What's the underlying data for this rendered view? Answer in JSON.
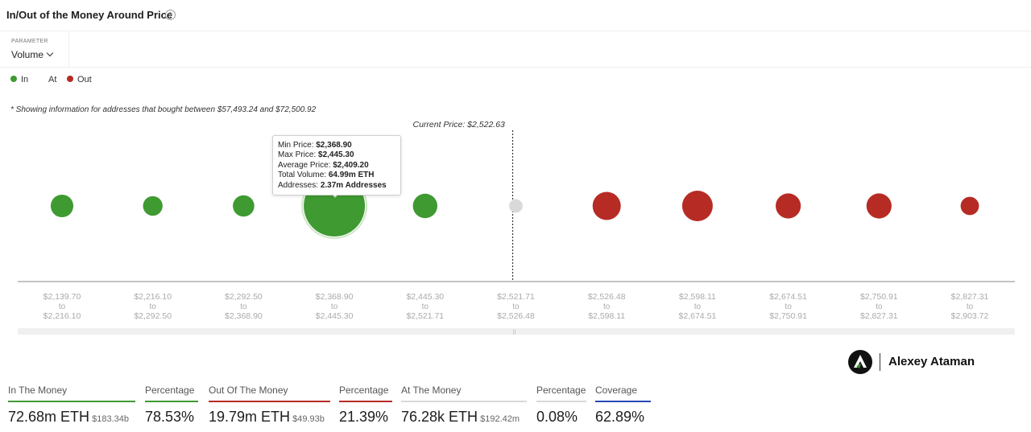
{
  "header": {
    "title": "In/Out of the Money Around Price"
  },
  "parameter": {
    "label": "PARAMETER",
    "value": "Volume"
  },
  "legend": [
    {
      "label": "In",
      "color": "#3f9a32"
    },
    {
      "label": "At",
      "color": "#d9d9d9"
    },
    {
      "label": "Out",
      "color": "#b72b25"
    }
  ],
  "note": "* Showing information for addresses that bought between $57,493.24 and $72,500.92",
  "chart_data": {
    "type": "scatter",
    "current_price_label": "Current Price: $2,522.63",
    "bubbles": [
      {
        "from": "$2,139.70",
        "to": "$2,216.10",
        "status": "in",
        "size": 0.37
      },
      {
        "from": "$2,216.10",
        "to": "$2,292.50",
        "status": "in",
        "size": 0.32
      },
      {
        "from": "$2,292.50",
        "to": "$2,368.90",
        "status": "in",
        "size": 0.35
      },
      {
        "from": "$2,368.90",
        "to": "$2,445.30",
        "status": "in",
        "size": 1.0
      },
      {
        "from": "$2,445.30",
        "to": "$2,521.71",
        "status": "in",
        "size": 0.4
      },
      {
        "from": "$2,521.71",
        "to": "$2,526.48",
        "status": "at",
        "size": 0.22
      },
      {
        "from": "$2,526.48",
        "to": "$2,598.11",
        "status": "out",
        "size": 0.46
      },
      {
        "from": "$2,598.11",
        "to": "$2,674.51",
        "status": "out",
        "size": 0.5
      },
      {
        "from": "$2,674.51",
        "to": "$2,750.91",
        "status": "out",
        "size": 0.41
      },
      {
        "from": "$2,750.91",
        "to": "$2,827.31",
        "status": "out",
        "size": 0.41
      },
      {
        "from": "$2,827.31",
        "to": "$2,903.72",
        "status": "out",
        "size": 0.3
      }
    ],
    "tick_joiner": "to"
  },
  "tooltip": {
    "min_label": "Min Price: ",
    "min_value": "$2,368.90",
    "max_label": "Max Price: ",
    "max_value": "$2,445.30",
    "avg_label": "Average Price: ",
    "avg_value": "$2,409.20",
    "vol_label": "Total Volume: ",
    "vol_value": "64.99m ETH",
    "addr_label": "Addresses: ",
    "addr_value": "2.37m Addresses"
  },
  "brand": {
    "name": "Alexey Ataman"
  },
  "stats": [
    {
      "label": "In The Money",
      "value": "72.68m ETH",
      "sub": "$183.34b",
      "color": "#3f9a32"
    },
    {
      "label": "Percentage",
      "value": "78.53%",
      "sub": "",
      "color": "#3f9a32"
    },
    {
      "label": "Out Of The Money",
      "value": "19.79m ETH",
      "sub": "$49.93b",
      "color": "#b72b25"
    },
    {
      "label": "Percentage",
      "value": "21.39%",
      "sub": "",
      "color": "#b72b25"
    },
    {
      "label": "At The Money",
      "value": "76.28k ETH",
      "sub": "$192.42m",
      "color": "#d9d9d9"
    },
    {
      "label": "Percentage",
      "value": "0.08%",
      "sub": "",
      "color": "#d9d9d9"
    },
    {
      "label": "Coverage",
      "value": "62.89%",
      "sub": "",
      "color": "#2948b8"
    }
  ]
}
